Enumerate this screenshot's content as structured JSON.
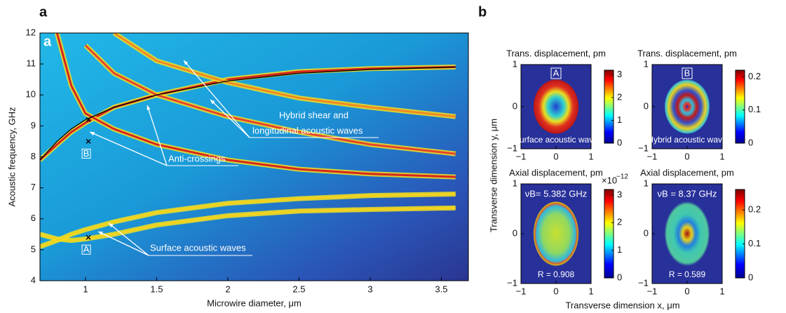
{
  "panel_labels": [
    "a",
    "b"
  ],
  "profile_y_label": "Transverse dimension y, μm",
  "profile_x_label": "Transverse dimension x, μm",
  "chart_data": [
    {
      "type": "line",
      "inset_label": "a",
      "x_label": "Microwire diameter, μm",
      "y_label": "Acoustic frequency, GHz",
      "xlim": [
        0.68,
        3.69
      ],
      "ylim": [
        4,
        12
      ],
      "xticks": [
        1,
        1.5,
        2,
        2.5,
        3,
        3.5
      ],
      "yticks": [
        4,
        5,
        6,
        7,
        8,
        9,
        10,
        11,
        12
      ],
      "x": [
        0.68,
        0.8,
        0.9,
        1.0,
        1.2,
        1.5,
        2.0,
        2.5,
        3.0,
        3.6
      ],
      "series": [
        {
          "color": "#d8261c",
          "values": [
            7.9,
            8.4,
            8.8,
            9.1,
            9.6,
            10.0,
            10.5,
            10.75,
            10.85,
            10.9
          ]
        },
        {
          "color": "#d8261c",
          "values": [
            null,
            12,
            10.3,
            9.4,
            8.9,
            8.4,
            7.9,
            7.6,
            7.45,
            7.35
          ]
        },
        {
          "color": "#e8442a",
          "values": [
            null,
            null,
            null,
            11.6,
            10.7,
            10.0,
            9.3,
            8.8,
            8.4,
            8.1
          ]
        },
        {
          "color": "#f08a24",
          "values": [
            null,
            null,
            null,
            null,
            12,
            11.1,
            10.4,
            9.9,
            9.6,
            9.3
          ]
        },
        {
          "color": "#f3d21e",
          "values": [
            5.5,
            5.35,
            5.3,
            5.35,
            5.5,
            5.8,
            6.1,
            6.25,
            6.3,
            6.35
          ]
        },
        {
          "color": "#f3d21e",
          "values": [
            5.1,
            5.3,
            5.5,
            5.65,
            5.9,
            6.2,
            6.5,
            6.65,
            6.75,
            6.8
          ]
        },
        {
          "color": "#000000",
          "values": [
            7.9,
            8.5,
            8.9,
            9.2,
            9.6,
            10.0,
            10.45,
            10.7,
            10.82,
            10.9
          ]
        }
      ],
      "markers": [
        {
          "x": 1.02,
          "y": 9.2
        },
        {
          "x": 1.02,
          "y": 8.5,
          "label": "B"
        },
        {
          "x": 1.02,
          "y": 5.4,
          "label": "A"
        }
      ],
      "annotations": [
        "Hybrid shear and",
        "longitudinal acoustic waves",
        "Anti-crossings",
        "Surface acoustic waves"
      ]
    },
    {
      "type": "image",
      "title": "Trans. displacement, pm",
      "box_label": "A",
      "caption": "Surface acoustic wave",
      "xlim": [
        -1,
        1
      ],
      "ylim": [
        -1,
        1
      ],
      "xticks": [
        {
          "value": -1,
          "label": "−1"
        },
        0,
        1
      ],
      "yticks": [
        {
          "value": -1,
          "label": "−1"
        },
        0,
        1
      ],
      "clim": [
        0,
        3.2
      ],
      "cticks": [
        0,
        1,
        2,
        3
      ]
    },
    {
      "type": "image",
      "title": "Trans. displacement, pm",
      "box_label": "B",
      "caption": "Hybrid acoustic wave",
      "xlim": [
        -1,
        1
      ],
      "ylim": [
        -1,
        1
      ],
      "xticks": [
        {
          "value": -1,
          "label": "−1"
        },
        0,
        1
      ],
      "yticks": [
        {
          "value": -1,
          "label": "−1"
        },
        0,
        1
      ],
      "clim": [
        0,
        0.22
      ],
      "cticks": [
        0,
        0.1,
        0.2
      ]
    },
    {
      "type": "image",
      "title": "Axial displacement, pm",
      "note": "νB= 5.382 GHz",
      "caption": "R = 0.908",
      "colorbar_multiplier": "×10",
      "colorbar_exponent": "−12",
      "xlim": [
        -1,
        1
      ],
      "ylim": [
        -1,
        1
      ],
      "xticks": [
        {
          "value": -1,
          "label": "−1"
        },
        0,
        1
      ],
      "yticks": [
        {
          "value": -1,
          "label": "−1"
        },
        0,
        1
      ],
      "clim": [
        0,
        3.2
      ],
      "cticks": [
        0,
        1,
        2,
        3
      ]
    },
    {
      "type": "image",
      "title": "Axial displacement, pm",
      "note": "νB = 8.37 GHz",
      "caption": "R = 0.589",
      "xlim": [
        -1,
        1
      ],
      "ylim": [
        -1,
        1
      ],
      "xticks": [
        {
          "value": -1,
          "label": "−1"
        },
        0,
        1
      ],
      "yticks": [
        {
          "value": -1,
          "label": "−1"
        },
        0,
        1
      ],
      "clim": [
        0,
        0.26
      ],
      "cticks": [
        0,
        0.1,
        0.2
      ]
    }
  ]
}
